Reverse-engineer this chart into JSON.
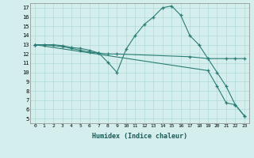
{
  "line1_x": [
    0,
    1,
    2,
    3,
    4,
    5,
    6,
    7,
    8,
    9,
    10,
    11,
    12,
    13,
    14,
    15,
    16,
    17,
    18,
    19,
    20,
    21,
    22,
    23
  ],
  "line1_y": [
    13,
    13,
    13,
    12.9,
    12.7,
    12.6,
    12.4,
    12.1,
    11.1,
    10.0,
    12.5,
    14.0,
    15.2,
    16.0,
    17.0,
    17.2,
    16.2,
    14.0,
    13.0,
    11.5,
    10.0,
    8.5,
    6.5,
    5.3
  ],
  "line2_x": [
    0,
    1,
    3,
    4,
    5,
    6,
    7,
    8,
    9,
    17,
    19,
    21,
    22,
    23
  ],
  "line2_y": [
    13,
    13,
    12.8,
    12.6,
    12.4,
    12.2,
    12.1,
    12.0,
    12.0,
    11.7,
    11.5,
    11.5,
    11.5,
    11.5
  ],
  "line3_x": [
    0,
    19,
    20,
    21,
    22,
    23
  ],
  "line3_y": [
    13,
    10.2,
    8.5,
    6.7,
    6.5,
    5.3
  ],
  "xlabel": "Humidex (Indice chaleur)",
  "xlim": [
    -0.5,
    23.5
  ],
  "ylim": [
    4.5,
    17.5
  ],
  "yticks": [
    5,
    6,
    7,
    8,
    9,
    10,
    11,
    12,
    13,
    14,
    15,
    16,
    17
  ],
  "xticks": [
    0,
    1,
    2,
    3,
    4,
    5,
    6,
    7,
    8,
    9,
    10,
    11,
    12,
    13,
    14,
    15,
    16,
    17,
    18,
    19,
    20,
    21,
    22,
    23
  ],
  "bg_color": "#d4eeed",
  "grid_color": "#a8d4d0",
  "line_color": "#2a7d74",
  "spine_color": "#888888"
}
